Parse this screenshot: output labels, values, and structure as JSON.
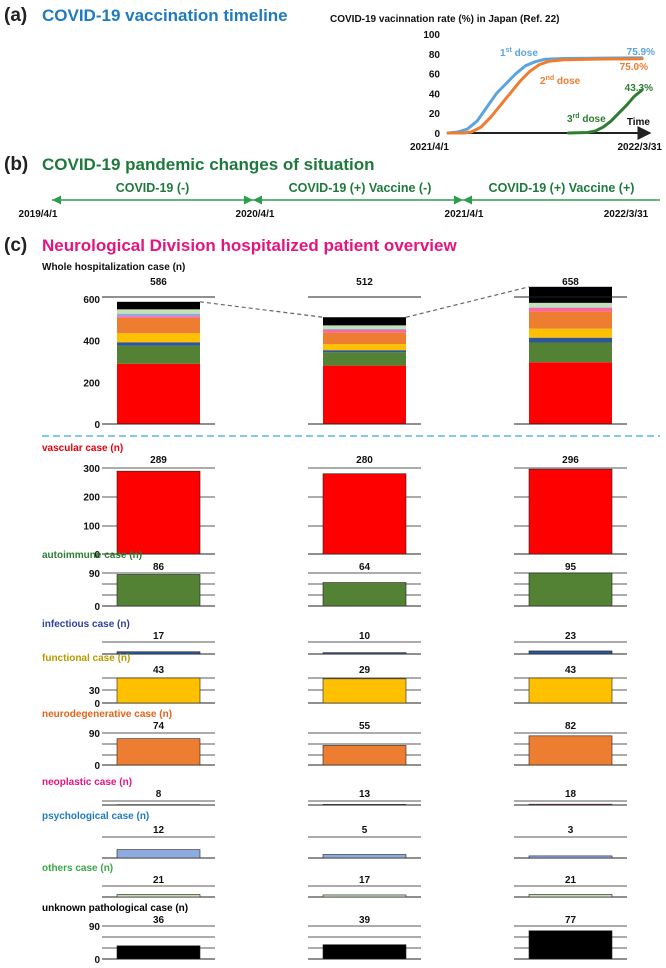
{
  "panel_a": {
    "letter": "(a)",
    "title": "COVID-19 vaccination timeline",
    "colors": {
      "letter": "#222222",
      "title": "#1f7bbf"
    }
  },
  "panel_b": {
    "letter": "(b)",
    "title": "COVID-19 pandemic changes of situation",
    "colors": {
      "title": "#1e7a3c",
      "arrow": "#2e9e4e"
    },
    "dates": [
      "2019/4/1",
      "2020/4/1",
      "2021/4/1",
      "2022/3/31"
    ],
    "periods": [
      "COVID-19 (-)",
      "COVID-19 (+) Vaccine (-)",
      "COVID-19 (+) Vaccine (+)"
    ]
  },
  "panel_c": {
    "letter": "(c)",
    "title": "Neurological Division hospitalized patient overview",
    "colors": {
      "title": "#e5147f",
      "divider": "#5bb8e0"
    }
  },
  "chart_data": [
    {
      "type": "line",
      "title": "COVID-19 vacinnation rate (%) in Japan (Ref. 22)",
      "xlabel": "Time",
      "x_range": [
        "2021/4/1",
        "2022/3/31"
      ],
      "y_ticks": [
        0,
        20,
        40,
        60,
        80,
        100
      ],
      "ylim": [
        0,
        100
      ],
      "series": [
        {
          "name": "1st dose",
          "final_label": "75.9%",
          "color": "#5ba4dc",
          "points": [
            [
              0,
              0
            ],
            [
              0.05,
              1
            ],
            [
              0.1,
              4
            ],
            [
              0.15,
              12
            ],
            [
              0.2,
              26
            ],
            [
              0.25,
              40
            ],
            [
              0.3,
              50
            ],
            [
              0.35,
              60
            ],
            [
              0.4,
              68
            ],
            [
              0.45,
              72
            ],
            [
              0.5,
              74.5
            ],
            [
              0.6,
              75.3
            ],
            [
              0.8,
              75.7
            ],
            [
              1,
              75.9
            ]
          ]
        },
        {
          "name": "2nd dose",
          "final_label": "75.0%",
          "color": "#ee7d31",
          "points": [
            [
              0,
              0
            ],
            [
              0.08,
              0
            ],
            [
              0.12,
              1
            ],
            [
              0.17,
              6
            ],
            [
              0.22,
              16
            ],
            [
              0.27,
              28
            ],
            [
              0.32,
              40
            ],
            [
              0.37,
              52
            ],
            [
              0.42,
              62
            ],
            [
              0.47,
              69
            ],
            [
              0.52,
              72.5
            ],
            [
              0.6,
              74
            ],
            [
              0.8,
              74.7
            ],
            [
              1,
              75
            ]
          ]
        },
        {
          "name": "3rd dose",
          "final_label": "43.3%",
          "color": "#2e7d32",
          "points": [
            [
              0.62,
              0
            ],
            [
              0.72,
              0.5
            ],
            [
              0.76,
              2
            ],
            [
              0.8,
              6
            ],
            [
              0.84,
              12
            ],
            [
              0.88,
              20
            ],
            [
              0.92,
              28
            ],
            [
              0.96,
              37
            ],
            [
              1,
              43.3
            ]
          ]
        }
      ]
    },
    {
      "type": "bar",
      "stacked": true,
      "title": "Whole hospitalization case (n)",
      "categories": [
        "COVID-19 (-)",
        "COVID-19 (+) Vaccine (-)",
        "COVID-19 (+) Vaccine (+)"
      ],
      "totals": [
        586,
        512,
        658
      ],
      "y_ticks": [
        0,
        200,
        400,
        600
      ],
      "ylim": [
        0,
        690
      ],
      "series": [
        {
          "name": "vascular case (n)",
          "color": "#ff0000",
          "values": [
            289,
            280,
            296
          ]
        },
        {
          "name": "autoimmune case (n)",
          "color": "#548235",
          "values": [
            86,
            64,
            95
          ]
        },
        {
          "name": "infectious case (n)",
          "color": "#2f5597",
          "values": [
            17,
            10,
            23
          ]
        },
        {
          "name": "functional case (n)",
          "color": "#ffc000",
          "values": [
            43,
            29,
            43
          ]
        },
        {
          "name": "neurodegenerative case (n)",
          "color": "#ed7d31",
          "values": [
            74,
            55,
            82
          ]
        },
        {
          "name": "neoplastic case (n)",
          "color": "#ff6699",
          "values": [
            8,
            13,
            18
          ]
        },
        {
          "name": "psychological case (n)",
          "color": "#8faadc",
          "values": [
            12,
            5,
            3
          ]
        },
        {
          "name": "others case (n)",
          "color": "#c5e0b4",
          "values": [
            21,
            17,
            21
          ]
        },
        {
          "name": "unknown pathological case (n)",
          "color": "#000000",
          "values": [
            36,
            39,
            77
          ]
        }
      ]
    },
    {
      "type": "bar",
      "small_multiples": true,
      "categories": [
        "COVID-19 (-)",
        "COVID-19 (+) Vaccine (-)",
        "COVID-19 (+) Vaccine (+)"
      ],
      "panels": [
        {
          "label": "vascular case (n)",
          "label_color": "#e8000b",
          "bar_color": "#ff0000",
          "values": [
            289,
            280,
            296
          ],
          "y_ticks": [
            "0",
            "100",
            "200",
            "300"
          ],
          "ymax": 300
        },
        {
          "label": "autoimmune case (n)",
          "label_color": "#2e7d32",
          "bar_color": "#548235",
          "values": [
            86,
            64,
            95
          ],
          "y_ticks": [
            "0",
            "90"
          ],
          "ymax": 90
        },
        {
          "label": "infectious case (n)",
          "label_color": "#2f3f9e",
          "bar_color": "#2f5597",
          "values": [
            17,
            10,
            23
          ],
          "y_ticks": [],
          "ymax": 90
        },
        {
          "label": "functional case (n)",
          "label_color": "#b89a00",
          "bar_color": "#ffc000",
          "values": [
            43,
            29,
            43
          ],
          "y_ticks": [
            "0",
            "30"
          ],
          "ymax": 30
        },
        {
          "label": "neurodegenerative case (n)",
          "label_color": "#e0651a",
          "bar_color": "#ed7d31",
          "values": [
            74,
            55,
            82
          ],
          "y_ticks": [
            "0",
            "90"
          ],
          "ymax": 90
        },
        {
          "label": "neoplastic case (n)",
          "label_color": "#e5147f",
          "bar_color": "#ff6699",
          "values": [
            8,
            13,
            18
          ],
          "y_ticks": [],
          "ymax": 90
        },
        {
          "label": "psychological case (n)",
          "label_color": "#1f7bbf",
          "bar_color": "#8faadc",
          "values": [
            12,
            5,
            3
          ],
          "y_ticks": [],
          "ymax": 30
        },
        {
          "label": "others case (n)",
          "label_color": "#3aa845",
          "bar_color": "#c5e0b4",
          "values": [
            21,
            17,
            21
          ],
          "y_ticks": [],
          "ymax": 90
        },
        {
          "label": "unknown pathological case (n)",
          "label_color": "#000000",
          "bar_color": "#000000",
          "values": [
            36,
            39,
            77
          ],
          "y_ticks": [
            "0",
            "90"
          ],
          "ymax": 90
        }
      ]
    }
  ]
}
